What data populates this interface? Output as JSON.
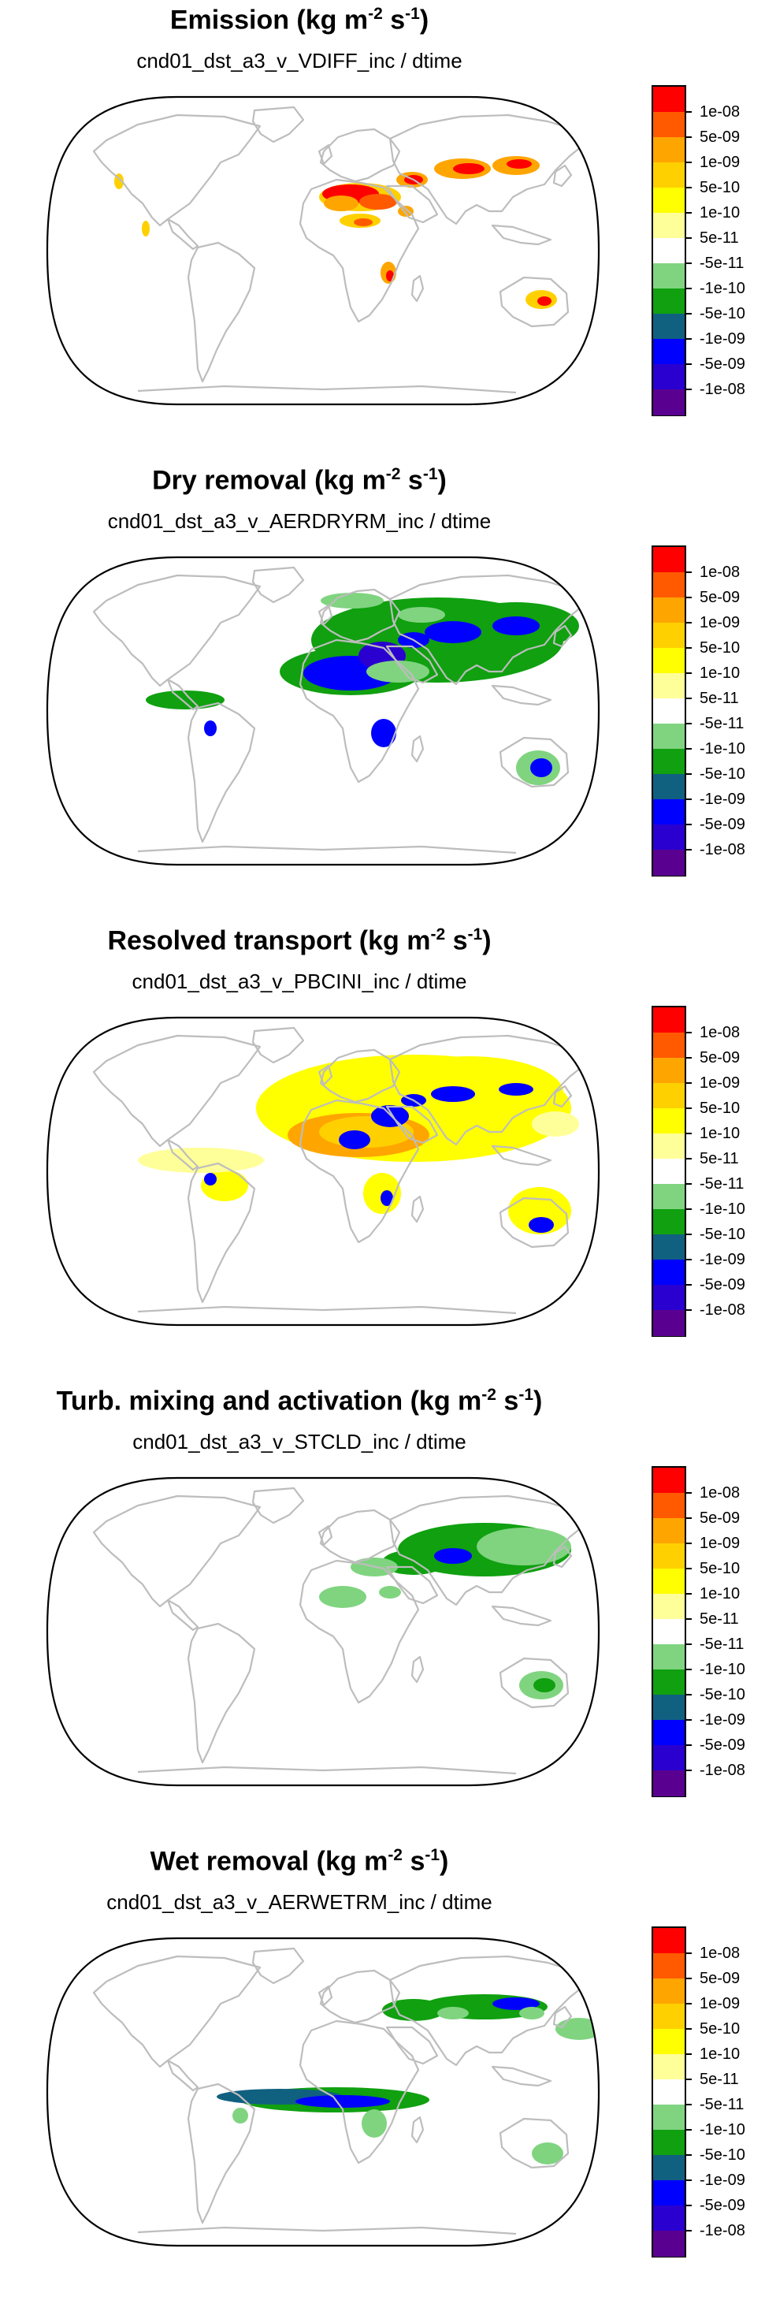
{
  "panels": [
    {
      "id": "emission",
      "title": "Emission (kg m",
      "subtitle": "cnd01_dst_a3_v_VDIFF_inc / dtime"
    },
    {
      "id": "dry",
      "title": "Dry removal (kg m",
      "subtitle": "cnd01_dst_a3_v_AERDRYRM_inc / dtime"
    },
    {
      "id": "transport",
      "title": "Resolved transport (kg m",
      "subtitle": "cnd01_dst_a3_v_PBCINI_inc / dtime"
    },
    {
      "id": "turb",
      "title": "Turb. mixing and activation (kg m",
      "subtitle": "cnd01_dst_a3_v_STCLD_inc / dtime"
    },
    {
      "id": "wet",
      "title": "Wet removal (kg m",
      "subtitle": "cnd01_dst_a3_v_AERWETRM_inc / dtime"
    }
  ],
  "units": {
    "exp_m": "-2",
    "mid": " s",
    "exp_s": "-1",
    "close": ")"
  },
  "colorbar": {
    "labels": [
      "1e-08",
      "5e-09",
      "1e-09",
      "5e-10",
      "1e-10",
      "5e-11",
      "-5e-11",
      "-1e-10",
      "-5e-10",
      "-1e-09",
      "-5e-09",
      "-1e-08"
    ],
    "colors": [
      "#ff0000",
      "#ff5a00",
      "#ffa500",
      "#ffd000",
      "#ffff00",
      "#ffff99",
      "#ffffff",
      "#80d480",
      "#10a010",
      "#106080",
      "#0000ff",
      "#2a00d0",
      "#5a0090"
    ]
  },
  "style": {
    "land": "#bdbdbd",
    "frame": "#000000"
  }
}
